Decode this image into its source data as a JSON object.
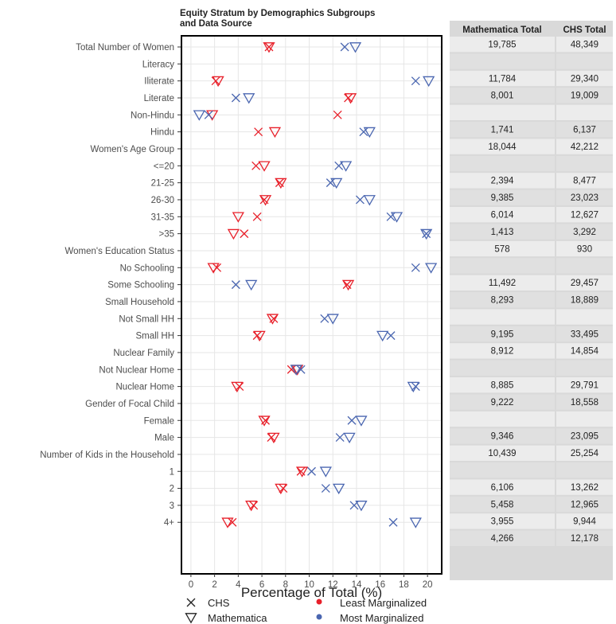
{
  "chart_data": {
    "type": "scatter",
    "title_lines": [
      "Equity Stratum by Demographics Subgroups",
      "and Data Source"
    ],
    "xlabel": "Percentage of Total (%)",
    "xlim": [
      -0.8,
      21.2
    ],
    "xticks": [
      0,
      2,
      4,
      6,
      8,
      10,
      12,
      14,
      16,
      18,
      20
    ],
    "grid": true,
    "colors": {
      "least": "#e8202a",
      "most": "#4a66b0"
    },
    "rows": [
      {
        "label": "Total Number of Women",
        "least": {
          "chs": 6.6,
          "math": 6.6
        },
        "most": {
          "chs": 13.0,
          "math": 13.9
        },
        "math_total": "19,785",
        "chs_total": "48,349"
      },
      {
        "label": "Literacy",
        "header": true,
        "math_total": "",
        "chs_total": ""
      },
      {
        "label": "Iliterate",
        "least": {
          "chs": 2.1,
          "math": 2.3
        },
        "most": {
          "chs": 19.0,
          "math": 20.1
        },
        "math_total": "11,784",
        "chs_total": "29,340"
      },
      {
        "label": "Literate",
        "least": {
          "chs": 13.3,
          "math": 13.5
        },
        "most": {
          "chs": 3.8,
          "math": 4.9
        },
        "math_total": "8,001",
        "chs_total": "19,009"
      },
      {
        "label": "Non-Hindu",
        "least": {
          "chs": 12.4,
          "math": 1.8
        },
        "most": {
          "chs": 1.5,
          "math": 0.7
        },
        "math_total": "",
        "chs_total": ""
      },
      {
        "label": "Hindu",
        "least": {
          "chs": 5.7,
          "math": 7.1
        },
        "most": {
          "chs": 14.6,
          "math": 15.1
        },
        "math_total": "1,741",
        "chs_total": "6,137"
      },
      {
        "label": "Women's Age Group",
        "header": true,
        "math_total": "18,044",
        "chs_total": "42,212"
      },
      {
        "label": "<=20",
        "least": {
          "chs": 5.5,
          "math": 6.2
        },
        "most": {
          "chs": 12.5,
          "math": 13.1
        },
        "math_total": "",
        "chs_total": ""
      },
      {
        "label": "21-25",
        "least": {
          "chs": 7.5,
          "math": 7.6
        },
        "most": {
          "chs": 11.8,
          "math": 12.3
        },
        "math_total": "2,394",
        "chs_total": "8,477"
      },
      {
        "label": "26-30",
        "least": {
          "chs": 6.2,
          "math": 6.3
        },
        "most": {
          "chs": 14.3,
          "math": 15.1
        },
        "math_total": "9,385",
        "chs_total": "23,023"
      },
      {
        "label": "31-35",
        "least": {
          "chs": 5.6,
          "math": 4.0
        },
        "most": {
          "chs": 16.9,
          "math": 17.4
        },
        "math_total": "6,014",
        "chs_total": "12,627"
      },
      {
        "label": ">35",
        "least": {
          "chs": 4.5,
          "math": 3.6
        },
        "most": {
          "chs": 19.9,
          "math": 19.9
        },
        "math_total": "1,413",
        "chs_total": "3,292"
      },
      {
        "label": "Women's Education Status",
        "header": true,
        "math_total": "578",
        "chs_total": "930"
      },
      {
        "label": "No Schooling",
        "least": {
          "chs": 2.2,
          "math": 1.9
        },
        "most": {
          "chs": 19.0,
          "math": 20.3
        },
        "math_total": "",
        "chs_total": ""
      },
      {
        "label": "Some Schooling",
        "least": {
          "chs": 13.2,
          "math": 13.3
        },
        "most": {
          "chs": 3.8,
          "math": 5.1
        },
        "math_total": "11,492",
        "chs_total": "29,457"
      },
      {
        "label": "Small Household",
        "header": true,
        "math_total": "8,293",
        "chs_total": "18,889"
      },
      {
        "label": "Not Small HH",
        "least": {
          "chs": 7.0,
          "math": 6.9
        },
        "most": {
          "chs": 11.3,
          "math": 12.0
        },
        "math_total": "",
        "chs_total": ""
      },
      {
        "label": "Small HH",
        "least": {
          "chs": 5.6,
          "math": 5.8
        },
        "most": {
          "chs": 16.9,
          "math": 16.2
        },
        "math_total": "9,195",
        "chs_total": "33,495"
      },
      {
        "label": "Nuclear Family",
        "header": true,
        "math_total": "8,912",
        "chs_total": "14,854"
      },
      {
        "label": "Not Nuclear Home",
        "least": {
          "chs": 8.5,
          "math": 9.0
        },
        "most": {
          "chs": 9.3,
          "math": 8.9
        },
        "math_total": "",
        "chs_total": ""
      },
      {
        "label": "Nuclear Home",
        "least": {
          "chs": 4.1,
          "math": 3.9
        },
        "most": {
          "chs": 19.0,
          "math": 18.8
        },
        "math_total": "8,885",
        "chs_total": "29,791"
      },
      {
        "label": "Gender of Focal Child",
        "header": true,
        "math_total": "9,222",
        "chs_total": "18,558"
      },
      {
        "label": "Female",
        "least": {
          "chs": 6.3,
          "math": 6.2
        },
        "most": {
          "chs": 13.6,
          "math": 14.4
        },
        "math_total": "",
        "chs_total": ""
      },
      {
        "label": "Male",
        "least": {
          "chs": 6.8,
          "math": 7.0
        },
        "most": {
          "chs": 12.6,
          "math": 13.4
        },
        "math_total": "9,346",
        "chs_total": "23,095"
      },
      {
        "label": "Number of Kids in the Household",
        "header": true,
        "math_total": "10,439",
        "chs_total": "25,254"
      },
      {
        "label": "1",
        "least": {
          "chs": 9.3,
          "math": 9.4
        },
        "most": {
          "chs": 10.2,
          "math": 11.4
        },
        "math_total": "",
        "chs_total": ""
      },
      {
        "label": "2",
        "least": {
          "chs": 7.8,
          "math": 7.6
        },
        "most": {
          "chs": 11.4,
          "math": 12.5
        },
        "math_total": "6,106",
        "chs_total": "13,262"
      },
      {
        "label": "3",
        "least": {
          "chs": 5.3,
          "math": 5.1
        },
        "most": {
          "chs": 13.8,
          "math": 14.4
        },
        "math_total": "5,458",
        "chs_total": "12,965"
      },
      {
        "label": "4+",
        "least": {
          "chs": 3.5,
          "math": 3.1
        },
        "most": {
          "chs": 17.1,
          "math": 19.0
        },
        "math_total": "3,955",
        "chs_total": "9,944"
      },
      {
        "label": "",
        "spacer": true,
        "math_total": "4,266",
        "chs_total": "12,178"
      }
    ],
    "table": {
      "headers": [
        "Mathematica Total",
        "CHS Total"
      ]
    },
    "legend": {
      "shapes": [
        {
          "symbol": "cross",
          "label": "CHS"
        },
        {
          "symbol": "triangle",
          "label": "Mathematica"
        }
      ],
      "colors": [
        {
          "key": "least",
          "label": "Least Marginalized"
        },
        {
          "key": "most",
          "label": "Most Marginalized"
        }
      ],
      "placement": "bottom"
    }
  }
}
